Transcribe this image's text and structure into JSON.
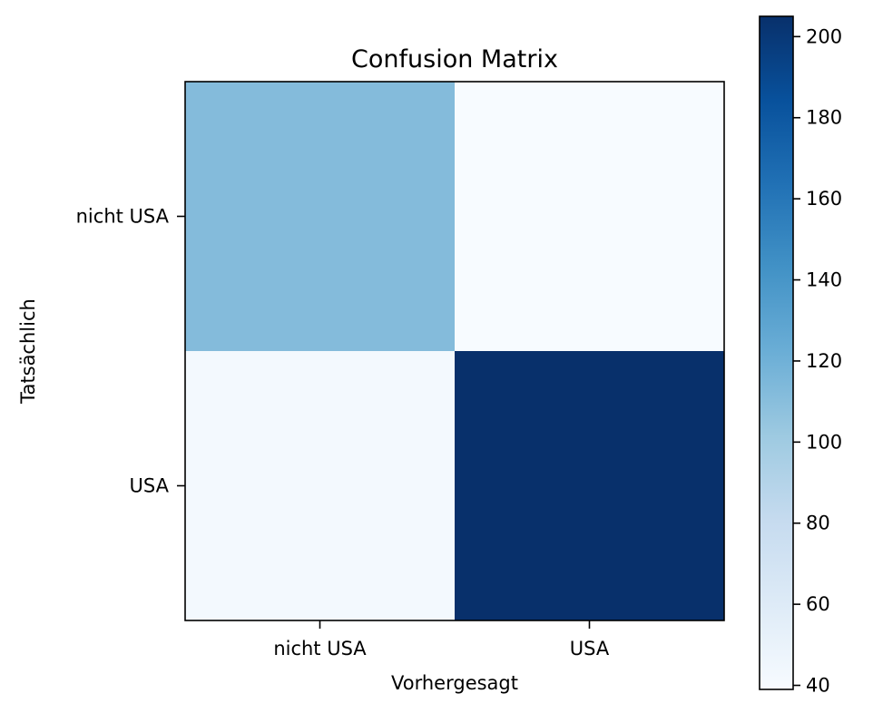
{
  "chart_data": {
    "type": "heatmap",
    "title": "Confusion Matrix",
    "xlabel": "Vorhergesagt",
    "ylabel": "Tatsächlich",
    "x_categories": [
      "nicht USA",
      "USA"
    ],
    "y_categories": [
      "nicht USA",
      "USA"
    ],
    "values": [
      [
        112,
        39
      ],
      [
        42,
        205
      ]
    ],
    "colorbar": {
      "colormap": "Blues",
      "range": [
        39,
        205
      ],
      "ticks": [
        40,
        60,
        80,
        100,
        120,
        140,
        160,
        180,
        200
      ],
      "tick_labels": [
        "40",
        "60",
        "80",
        "100",
        "120",
        "140",
        "160",
        "180",
        "200"
      ]
    },
    "colormap_stops": [
      "#f7fbff",
      "#deebf7",
      "#c6dbef",
      "#9ecae1",
      "#6baed6",
      "#4292c6",
      "#2171b5",
      "#08519c",
      "#08306b"
    ],
    "grid": false
  }
}
